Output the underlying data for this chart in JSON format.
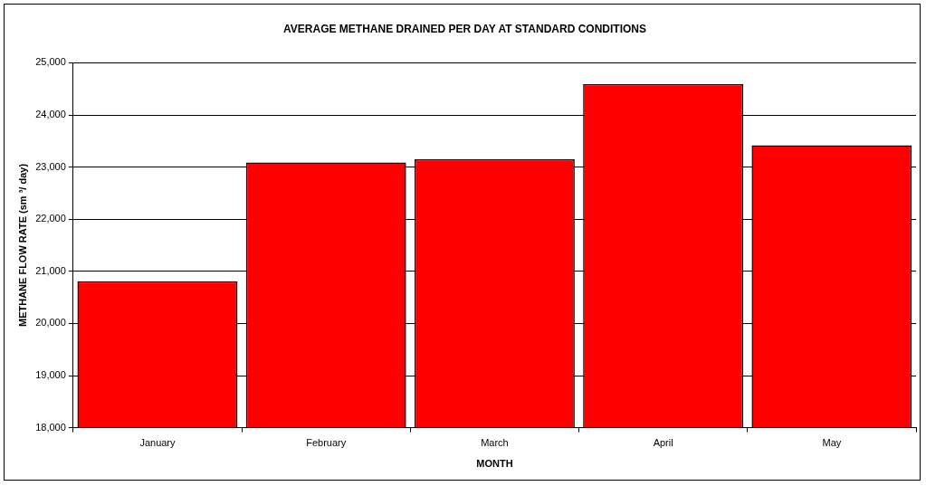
{
  "chart_data": {
    "type": "bar",
    "title": "AVERAGE METHANE DRAINED PER DAY AT STANDARD CONDITIONS",
    "xlabel": "MONTH",
    "ylabel": "METHANE FLOW RATE (sm ³/ day)",
    "categories": [
      "January",
      "February",
      "March",
      "April",
      "May"
    ],
    "values": [
      20810,
      23090,
      23150,
      24590,
      23420
    ],
    "color": "#ff0000",
    "ylim": [
      18000,
      25000
    ],
    "yticks": [
      {
        "value": 18000,
        "label": "18,000"
      },
      {
        "value": 19000,
        "label": "19,000"
      },
      {
        "value": 20000,
        "label": "20,000"
      },
      {
        "value": 21000,
        "label": "21,000"
      },
      {
        "value": 22000,
        "label": "22,000"
      },
      {
        "value": 23000,
        "label": "23,000"
      },
      {
        "value": 24000,
        "label": "24,000"
      },
      {
        "value": 25000,
        "label": "25,000"
      }
    ],
    "grid": "y"
  }
}
